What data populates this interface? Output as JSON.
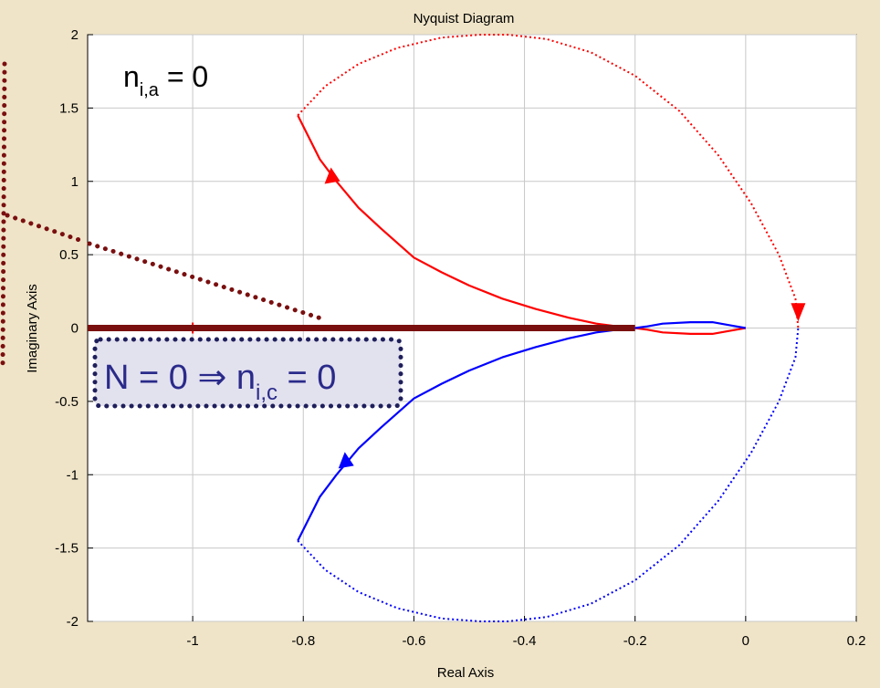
{
  "chart_data": {
    "type": "line",
    "title": "Nyquist Diagram",
    "xlabel": "Real Axis",
    "ylabel": "Imaginary Axis",
    "xlim": [
      -1.19,
      0.2
    ],
    "ylim": [
      -2,
      2
    ],
    "grid": true,
    "xticks": [
      -1,
      -0.8,
      -0.6,
      -0.4,
      -0.2,
      0,
      0.2
    ],
    "yticks": [
      -2,
      -1.5,
      -1,
      -0.5,
      0,
      0.5,
      1,
      1.5,
      2
    ],
    "xtick_labels": [
      "-1",
      "-0.8",
      "-0.6",
      "-0.4",
      "-0.2",
      "0",
      "0.2"
    ],
    "ytick_labels": [
      "-2",
      "-1.5",
      "-1",
      "-0.5",
      "0",
      "0.5",
      "1",
      "1.5",
      "2"
    ],
    "critical_point": {
      "x": -1,
      "y": 0
    },
    "series": [
      {
        "style": "solid",
        "color": "#ff0000",
        "x": [
          -0.81,
          -0.79,
          -0.77,
          -0.74,
          -0.7,
          -0.66,
          -0.6,
          -0.55,
          -0.5,
          -0.44,
          -0.38,
          -0.32,
          -0.27,
          -0.23,
          -0.2,
          -0.18,
          -0.15,
          -0.1,
          -0.06,
          -0.03,
          0
        ],
        "y": [
          1.45,
          1.3,
          1.15,
          1.0,
          0.82,
          0.68,
          0.48,
          0.38,
          0.29,
          0.2,
          0.13,
          0.07,
          0.03,
          0.01,
          0.0,
          -0.01,
          -0.03,
          -0.04,
          -0.04,
          -0.02,
          0
        ]
      },
      {
        "style": "solid",
        "color": "#0000ff",
        "x": [
          -0.81,
          -0.79,
          -0.77,
          -0.74,
          -0.7,
          -0.66,
          -0.6,
          -0.55,
          -0.5,
          -0.44,
          -0.38,
          -0.32,
          -0.27,
          -0.23,
          -0.2,
          -0.18,
          -0.15,
          -0.1,
          -0.06,
          -0.03,
          0
        ],
        "y": [
          -1.45,
          -1.3,
          -1.15,
          -1.0,
          -0.82,
          -0.68,
          -0.48,
          -0.38,
          -0.29,
          -0.2,
          -0.13,
          -0.07,
          -0.03,
          -0.01,
          0.0,
          0.01,
          0.03,
          0.04,
          0.04,
          0.02,
          0
        ]
      },
      {
        "style": "dotted",
        "color": "#ff0000",
        "x": [
          -0.81,
          -0.76,
          -0.7,
          -0.63,
          -0.55,
          -0.48,
          -0.43,
          -0.36,
          -0.28,
          -0.2,
          -0.12,
          -0.05,
          0.01,
          0.06,
          0.09,
          0.095
        ],
        "y": [
          1.45,
          1.65,
          1.8,
          1.91,
          1.98,
          2.0,
          2.0,
          1.97,
          1.88,
          1.72,
          1.48,
          1.18,
          0.85,
          0.5,
          0.2,
          0.0
        ]
      },
      {
        "style": "dotted",
        "color": "#0000ff",
        "x": [
          -0.81,
          -0.76,
          -0.7,
          -0.63,
          -0.55,
          -0.48,
          -0.43,
          -0.36,
          -0.28,
          -0.2,
          -0.12,
          -0.05,
          0.01,
          0.06,
          0.09,
          0.095
        ],
        "y": [
          -1.45,
          -1.65,
          -1.8,
          -1.91,
          -1.98,
          -2.0,
          -2.0,
          -1.97,
          -1.88,
          -1.72,
          -1.48,
          -1.18,
          -0.85,
          -0.5,
          -0.2,
          0.0
        ]
      }
    ],
    "arrows": [
      {
        "x": -0.745,
        "y": 1.02,
        "dir": "up",
        "color": "#ff0000"
      },
      {
        "x": -0.72,
        "y": -0.92,
        "dir": "up",
        "color": "#0000ff"
      },
      {
        "x": 0.095,
        "y": 0.12,
        "dir": "down",
        "color": "#ff0000"
      }
    ],
    "annotations": {
      "top_label": {
        "base": "n",
        "subscript": "i,a",
        "rest": " = 0"
      },
      "boxed_label": {
        "lhs": "N = 0 ⇒ n",
        "subscript": "i,c",
        "rest": " = 0"
      }
    }
  },
  "colors": {
    "background": "#efe4c8",
    "highlight": "#7a0f0f",
    "box_fill": "#e2e1ee",
    "box_border": "#1f1f5c"
  }
}
